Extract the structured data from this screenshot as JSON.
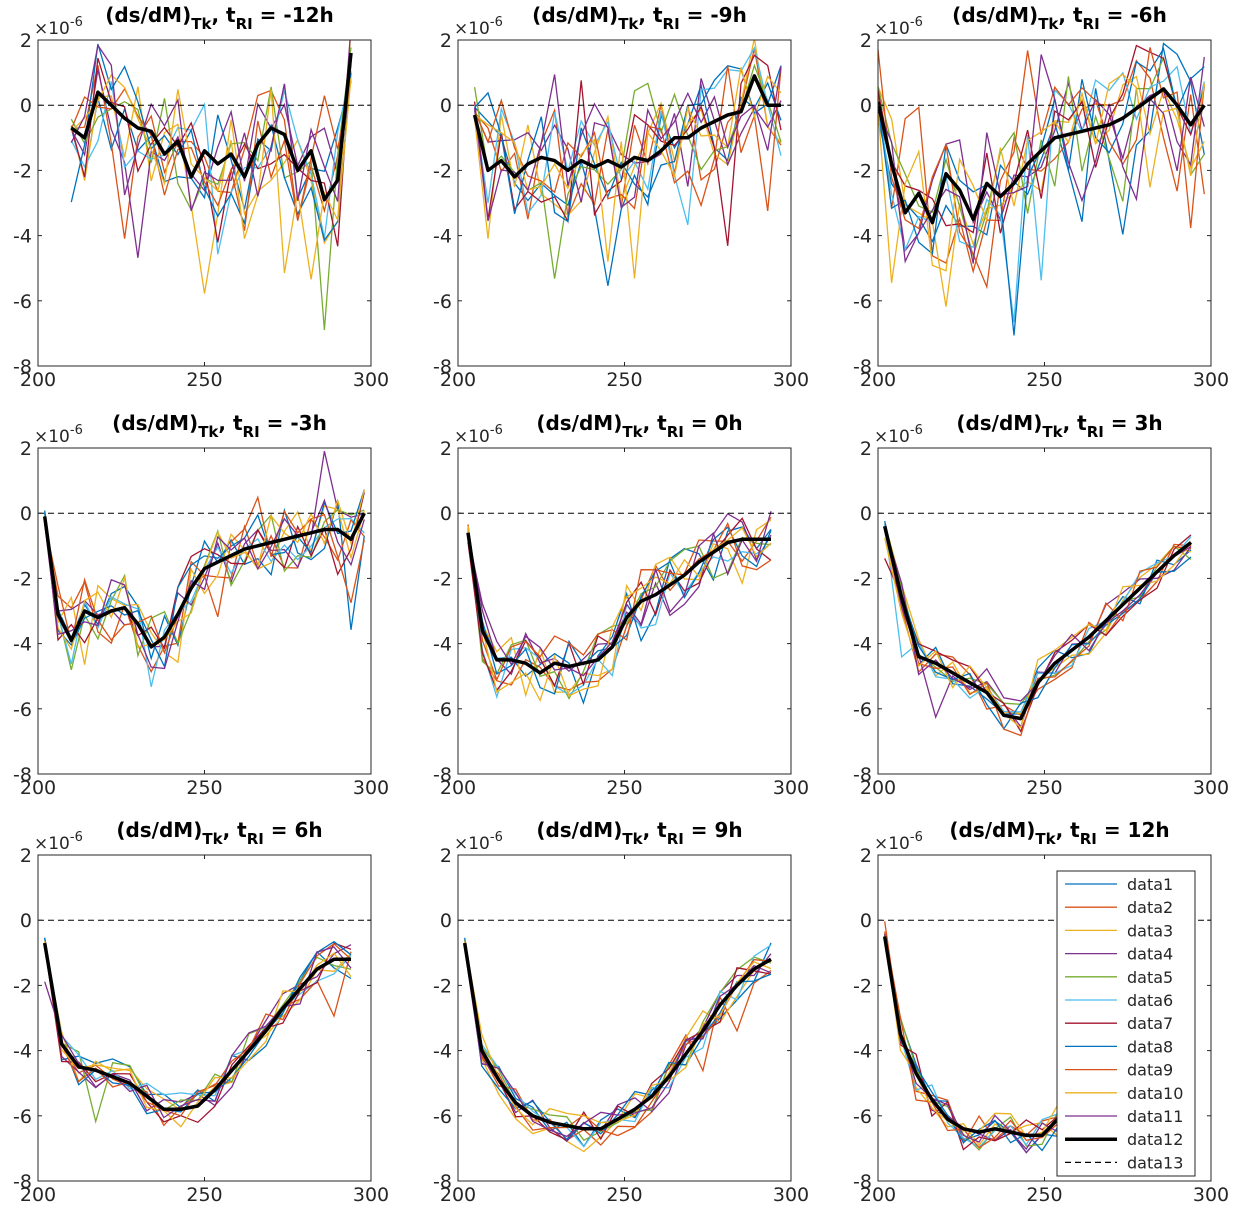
{
  "chart_data": {
    "type": "line",
    "layout": "3x3 grid of small-multiple line plots",
    "exponent_label": "×10",
    "exponent_power": "-6",
    "title_prefix": "(ds/dM)",
    "title_sub_tk": "Tk",
    "title_sub_ri": "RI",
    "title_t": "t",
    "xlim": [
      200,
      300
    ],
    "ylim": [
      -8,
      2
    ],
    "xticks": [
      "200",
      "250",
      "300"
    ],
    "yticks": [
      "2",
      "0",
      "-2",
      "-4",
      "-6",
      "-8"
    ],
    "legend_placement": "bottom-right panel, inside right",
    "colors": [
      "#0072BD",
      "#D95319",
      "#EDB120",
      "#7E2F8E",
      "#77AC30",
      "#4DBEEE",
      "#A2142F",
      "#0072BD",
      "#D95319",
      "#EDB120",
      "#7E2F8E",
      "#000000",
      "#000000"
    ],
    "legend": [
      "data1",
      "data2",
      "data3",
      "data4",
      "data5",
      "data6",
      "data7",
      "data8",
      "data9",
      "data10",
      "data11",
      "data12",
      "data13"
    ],
    "panels": [
      {
        "title_value": "-12h",
        "x_start": 210,
        "x_end": 294,
        "mean": [
          -0.7,
          -1.0,
          0.4,
          0.0,
          -0.4,
          -0.7,
          -0.8,
          -1.5,
          -1.1,
          -2.2,
          -1.4,
          -1.8,
          -1.5,
          -2.2,
          -1.2,
          -0.7,
          -0.9,
          -2.0,
          -1.4,
          -2.9,
          -2.3,
          1.6
        ]
      },
      {
        "title_value": "-9h",
        "x_start": 205,
        "x_end": 297,
        "mean": [
          -0.3,
          -2.0,
          -1.7,
          -2.2,
          -1.8,
          -1.6,
          -1.7,
          -2.0,
          -1.7,
          -1.9,
          -1.7,
          -1.9,
          -1.6,
          -1.7,
          -1.4,
          -1.0,
          -1.0,
          -0.7,
          -0.5,
          -0.3,
          -0.2,
          0.9,
          0.0,
          0.0
        ]
      },
      {
        "title_value": "-6h",
        "x_start": 200,
        "x_end": 298,
        "mean": [
          0.1,
          -1.8,
          -3.3,
          -2.7,
          -3.6,
          -2.1,
          -2.6,
          -3.5,
          -2.4,
          -2.8,
          -2.4,
          -1.8,
          -1.4,
          -1.0,
          -0.9,
          -0.8,
          -0.7,
          -0.6,
          -0.4,
          -0.1,
          0.2,
          0.5,
          0.0,
          -0.6,
          0.0
        ]
      },
      {
        "title_value": "-3h",
        "x_start": 202,
        "x_end": 298,
        "mean": [
          -0.1,
          -3.1,
          -3.9,
          -3.0,
          -3.2,
          -3.0,
          -2.9,
          -3.4,
          -4.1,
          -3.8,
          -3.1,
          -2.3,
          -1.7,
          -1.5,
          -1.3,
          -1.1,
          -1.0,
          -0.9,
          -0.8,
          -0.7,
          -0.6,
          -0.5,
          -0.5,
          -0.8,
          0.0
        ]
      },
      {
        "title_value": "0h",
        "x_start": 203,
        "x_end": 294,
        "mean": [
          -0.6,
          -3.6,
          -4.5,
          -4.5,
          -4.6,
          -4.9,
          -4.6,
          -4.7,
          -4.6,
          -4.5,
          -4.1,
          -3.2,
          -2.7,
          -2.5,
          -2.2,
          -1.9,
          -1.5,
          -1.2,
          -0.9,
          -0.8,
          -0.8,
          -0.8
        ]
      },
      {
        "title_value": "3h",
        "x_start": 202,
        "x_end": 294,
        "mean": [
          -0.4,
          -2.6,
          -4.4,
          -4.6,
          -4.9,
          -5.2,
          -5.5,
          -6.2,
          -6.3,
          -5.2,
          -4.6,
          -4.2,
          -3.8,
          -3.3,
          -2.8,
          -2.3,
          -1.8,
          -1.3,
          -0.9
        ]
      },
      {
        "title_value": "6h",
        "x_start": 202,
        "x_end": 294,
        "mean": [
          -0.7,
          -3.8,
          -4.5,
          -4.6,
          -4.8,
          -5.0,
          -5.4,
          -5.8,
          -5.8,
          -5.7,
          -5.2,
          -4.6,
          -4.0,
          -3.4,
          -2.7,
          -2.1,
          -1.5,
          -1.2,
          -1.2
        ]
      },
      {
        "title_value": "9h",
        "x_start": 202,
        "x_end": 294,
        "mean": [
          -0.7,
          -4.0,
          -4.9,
          -5.6,
          -6.0,
          -6.2,
          -6.3,
          -6.4,
          -6.4,
          -6.1,
          -5.8,
          -5.4,
          -4.8,
          -4.1,
          -3.4,
          -2.6,
          -2.0,
          -1.5,
          -1.2
        ]
      },
      {
        "title_value": "12h",
        "x_start": 202,
        "x_end": 254,
        "mean": [
          -0.5,
          -3.5,
          -4.7,
          -5.5,
          -6.1,
          -6.4,
          -6.5,
          -6.4,
          -6.5,
          -6.6,
          -6.6,
          -6.1
        ]
      }
    ]
  }
}
